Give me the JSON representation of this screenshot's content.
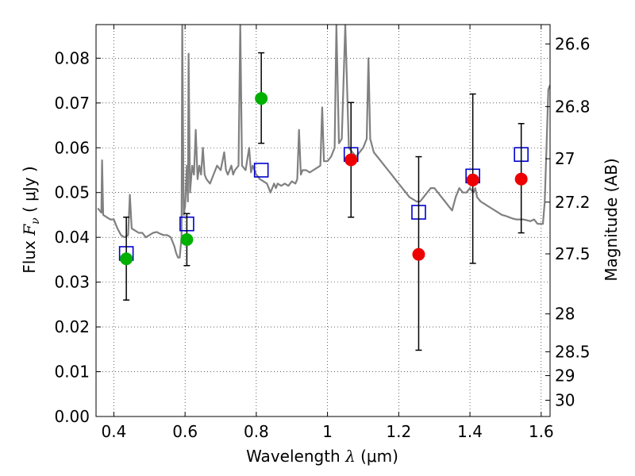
{
  "chart_data": {
    "type": "scatter",
    "xlabel_text": "Wavelength  ",
    "xlabel_symbol": "λ",
    "xlabel_unit": " (μm)",
    "ylabel_text": "Flux  ",
    "ylabel_symbol": "F",
    "ylabel_subscript": "ν",
    "ylabel_unit": "  ( μJy )",
    "y2label": "Magnitude (AB)",
    "xlim": [
      0.35,
      1.625
    ],
    "ylim": [
      0.0,
      0.0875
    ],
    "grid": true,
    "x_ticks": [
      {
        "value": 0.4,
        "label": "0.4"
      },
      {
        "value": 0.6,
        "label": "0.6"
      },
      {
        "value": 0.8,
        "label": "0.8"
      },
      {
        "value": 1.0,
        "label": "1"
      },
      {
        "value": 1.2,
        "label": "1.2"
      },
      {
        "value": 1.4,
        "label": "1.4"
      },
      {
        "value": 1.6,
        "label": "1.6"
      }
    ],
    "y_ticks": [
      {
        "value": 0.0,
        "label": "0.00"
      },
      {
        "value": 0.01,
        "label": "0.01"
      },
      {
        "value": 0.02,
        "label": "0.02"
      },
      {
        "value": 0.03,
        "label": "0.03"
      },
      {
        "value": 0.04,
        "label": "0.04"
      },
      {
        "value": 0.05,
        "label": "0.05"
      },
      {
        "value": 0.06,
        "label": "0.06"
      },
      {
        "value": 0.07,
        "label": "0.07"
      },
      {
        "value": 0.08,
        "label": "0.08"
      }
    ],
    "y2_ticks": [
      {
        "mag": 26.6,
        "label": "26.6"
      },
      {
        "mag": 26.8,
        "label": "26.8"
      },
      {
        "mag": 27.0,
        "label": "27"
      },
      {
        "mag": 27.2,
        "label": "27.2"
      },
      {
        "mag": 27.5,
        "label": "27.5"
      },
      {
        "mag": 28.0,
        "label": "28"
      },
      {
        "mag": 28.5,
        "label": "28.5"
      },
      {
        "mag": 29.0,
        "label": "29"
      },
      {
        "mag": 30.0,
        "label": "30"
      }
    ],
    "colors": {
      "spectrum": "#808080",
      "model": "#0000cc",
      "green": "#00b000",
      "red": "#ee0000",
      "error": "#000000"
    },
    "spectrum": [
      [
        0.355,
        0.0465
      ],
      [
        0.36,
        0.046
      ],
      [
        0.365,
        0.0455
      ],
      [
        0.367,
        0.0572
      ],
      [
        0.37,
        0.045
      ],
      [
        0.38,
        0.0445
      ],
      [
        0.39,
        0.044
      ],
      [
        0.4,
        0.044
      ],
      [
        0.41,
        0.042
      ],
      [
        0.42,
        0.0405
      ],
      [
        0.43,
        0.04
      ],
      [
        0.44,
        0.0405
      ],
      [
        0.445,
        0.0495
      ],
      [
        0.45,
        0.042
      ],
      [
        0.46,
        0.0415
      ],
      [
        0.47,
        0.041
      ],
      [
        0.48,
        0.041
      ],
      [
        0.49,
        0.04
      ],
      [
        0.5,
        0.0405
      ],
      [
        0.51,
        0.041
      ],
      [
        0.52,
        0.0412
      ],
      [
        0.53,
        0.0408
      ],
      [
        0.54,
        0.0405
      ],
      [
        0.55,
        0.0405
      ],
      [
        0.56,
        0.04
      ],
      [
        0.57,
        0.038
      ],
      [
        0.575,
        0.0365
      ],
      [
        0.58,
        0.0355
      ],
      [
        0.585,
        0.0355
      ],
      [
        0.59,
        0.04
      ],
      [
        0.592,
        0.0875
      ],
      [
        0.596,
        0.045
      ],
      [
        0.6,
        0.047
      ],
      [
        0.605,
        0.056
      ],
      [
        0.608,
        0.048
      ],
      [
        0.61,
        0.081
      ],
      [
        0.614,
        0.05
      ],
      [
        0.62,
        0.056
      ],
      [
        0.625,
        0.054
      ],
      [
        0.63,
        0.064
      ],
      [
        0.635,
        0.053
      ],
      [
        0.64,
        0.056
      ],
      [
        0.645,
        0.054
      ],
      [
        0.65,
        0.06
      ],
      [
        0.655,
        0.054
      ],
      [
        0.66,
        0.053
      ],
      [
        0.67,
        0.052
      ],
      [
        0.68,
        0.054
      ],
      [
        0.69,
        0.056
      ],
      [
        0.7,
        0.055
      ],
      [
        0.71,
        0.059
      ],
      [
        0.715,
        0.055
      ],
      [
        0.72,
        0.054
      ],
      [
        0.73,
        0.056
      ],
      [
        0.735,
        0.054
      ],
      [
        0.74,
        0.055
      ],
      [
        0.75,
        0.056
      ],
      [
        0.755,
        0.0875
      ],
      [
        0.76,
        0.056
      ],
      [
        0.77,
        0.055
      ],
      [
        0.78,
        0.06
      ],
      [
        0.785,
        0.0545
      ],
      [
        0.79,
        0.056
      ],
      [
        0.8,
        0.054
      ],
      [
        0.81,
        0.053
      ],
      [
        0.82,
        0.0525
      ],
      [
        0.83,
        0.052
      ],
      [
        0.84,
        0.05
      ],
      [
        0.85,
        0.052
      ],
      [
        0.855,
        0.051
      ],
      [
        0.86,
        0.052
      ],
      [
        0.87,
        0.0515
      ],
      [
        0.88,
        0.052
      ],
      [
        0.89,
        0.0515
      ],
      [
        0.9,
        0.0525
      ],
      [
        0.91,
        0.052
      ],
      [
        0.915,
        0.053
      ],
      [
        0.92,
        0.064
      ],
      [
        0.925,
        0.054
      ],
      [
        0.93,
        0.055
      ],
      [
        0.94,
        0.055
      ],
      [
        0.95,
        0.0545
      ],
      [
        0.96,
        0.055
      ],
      [
        0.97,
        0.0555
      ],
      [
        0.98,
        0.056
      ],
      [
        0.985,
        0.069
      ],
      [
        0.99,
        0.057
      ],
      [
        1.0,
        0.057
      ],
      [
        1.01,
        0.058
      ],
      [
        1.02,
        0.06
      ],
      [
        1.025,
        0.0875
      ],
      [
        1.032,
        0.061
      ],
      [
        1.04,
        0.062
      ],
      [
        1.05,
        0.0875
      ],
      [
        1.06,
        0.06
      ],
      [
        1.07,
        0.059
      ],
      [
        1.08,
        0.058
      ],
      [
        1.09,
        0.059
      ],
      [
        1.1,
        0.06
      ],
      [
        1.11,
        0.062
      ],
      [
        1.115,
        0.08
      ],
      [
        1.12,
        0.062
      ],
      [
        1.13,
        0.059
      ],
      [
        1.14,
        0.058
      ],
      [
        1.15,
        0.057
      ],
      [
        1.16,
        0.056
      ],
      [
        1.17,
        0.055
      ],
      [
        1.18,
        0.054
      ],
      [
        1.19,
        0.053
      ],
      [
        1.2,
        0.052
      ],
      [
        1.21,
        0.051
      ],
      [
        1.22,
        0.05
      ],
      [
        1.23,
        0.049
      ],
      [
        1.24,
        0.0485
      ],
      [
        1.25,
        0.048
      ],
      [
        1.26,
        0.048
      ],
      [
        1.27,
        0.049
      ],
      [
        1.28,
        0.05
      ],
      [
        1.29,
        0.051
      ],
      [
        1.3,
        0.051
      ],
      [
        1.31,
        0.05
      ],
      [
        1.32,
        0.049
      ],
      [
        1.33,
        0.048
      ],
      [
        1.34,
        0.047
      ],
      [
        1.35,
        0.046
      ],
      [
        1.36,
        0.049
      ],
      [
        1.37,
        0.051
      ],
      [
        1.38,
        0.05
      ],
      [
        1.39,
        0.05
      ],
      [
        1.4,
        0.051
      ],
      [
        1.41,
        0.05
      ],
      [
        1.415,
        0.051
      ],
      [
        1.42,
        0.049
      ],
      [
        1.43,
        0.048
      ],
      [
        1.44,
        0.0475
      ],
      [
        1.45,
        0.047
      ],
      [
        1.46,
        0.0465
      ],
      [
        1.47,
        0.046
      ],
      [
        1.48,
        0.0455
      ],
      [
        1.49,
        0.045
      ],
      [
        1.5,
        0.0448
      ],
      [
        1.51,
        0.0445
      ],
      [
        1.52,
        0.0442
      ],
      [
        1.53,
        0.044
      ],
      [
        1.54,
        0.044
      ],
      [
        1.55,
        0.044
      ],
      [
        1.56,
        0.0438
      ],
      [
        1.57,
        0.0436
      ],
      [
        1.58,
        0.044
      ],
      [
        1.59,
        0.043
      ],
      [
        1.6,
        0.043
      ],
      [
        1.605,
        0.043
      ],
      [
        1.61,
        0.048
      ],
      [
        1.615,
        0.06
      ],
      [
        1.62,
        0.073
      ],
      [
        1.625,
        0.074
      ]
    ],
    "model_points": [
      {
        "x": 0.435,
        "y": 0.0364
      },
      {
        "x": 0.605,
        "y": 0.043
      },
      {
        "x": 0.814,
        "y": 0.055
      },
      {
        "x": 1.066,
        "y": 0.0585
      },
      {
        "x": 1.256,
        "y": 0.0456
      },
      {
        "x": 1.408,
        "y": 0.0537
      },
      {
        "x": 1.544,
        "y": 0.0585
      }
    ],
    "observed_points": [
      {
        "x": 0.435,
        "y": 0.0352,
        "err_low": 0.026,
        "err_high": 0.0445,
        "color": "green"
      },
      {
        "x": 0.605,
        "y": 0.0395,
        "err_low": 0.0337,
        "err_high": 0.0453,
        "color": "green"
      },
      {
        "x": 0.814,
        "y": 0.071,
        "err_low": 0.061,
        "err_high": 0.0812,
        "color": "green"
      },
      {
        "x": 1.066,
        "y": 0.0573,
        "err_low": 0.0445,
        "err_high": 0.0701,
        "color": "red"
      },
      {
        "x": 1.256,
        "y": 0.0362,
        "err_low": 0.0148,
        "err_high": 0.058,
        "color": "red"
      },
      {
        "x": 1.408,
        "y": 0.0528,
        "err_low": 0.0342,
        "err_high": 0.072,
        "color": "red"
      },
      {
        "x": 1.544,
        "y": 0.053,
        "err_low": 0.041,
        "err_high": 0.0654,
        "color": "red"
      }
    ]
  }
}
